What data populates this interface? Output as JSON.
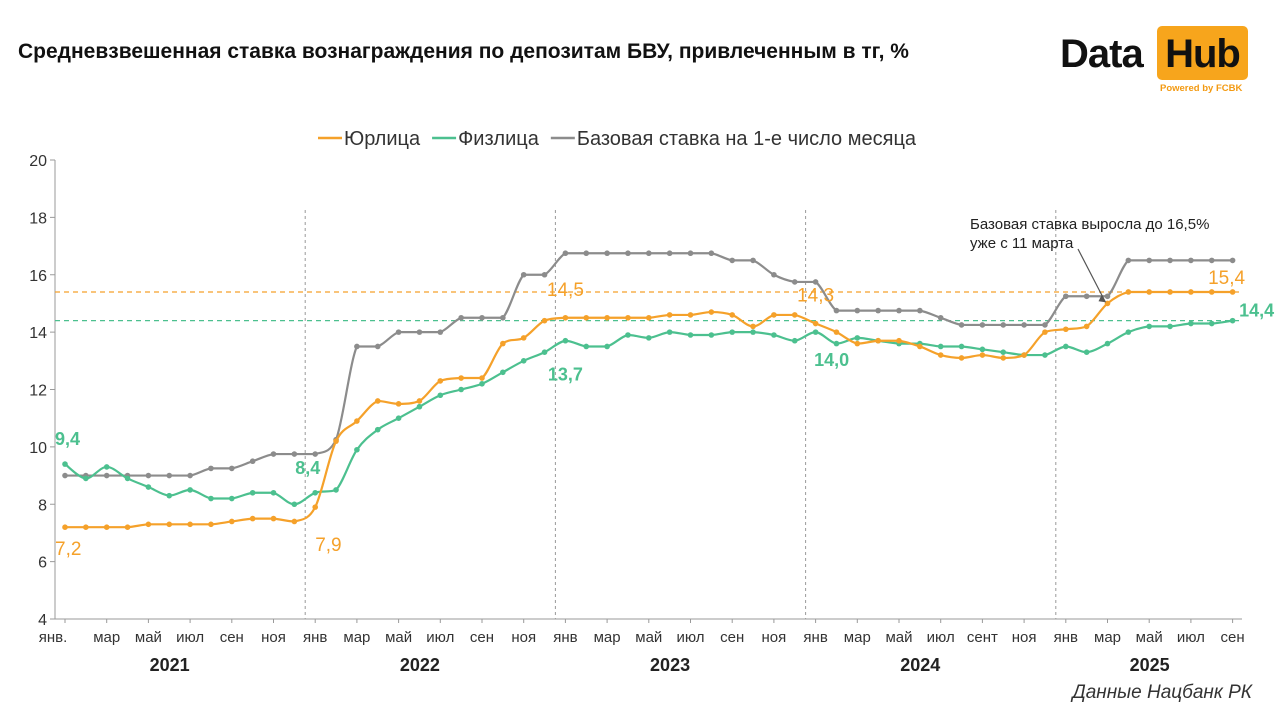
{
  "title": "Средневзвешенная ставка вознаграждения по депозитам БВУ, привлеченным в тг, %",
  "logo": {
    "left": "Data",
    "right": "Hub",
    "powered": "Powered by FCBK"
  },
  "source": "Данные Нацбанк РК",
  "colors": {
    "legal": "#f5a12a",
    "individual": "#4cc08f",
    "base": "#8c8c8c",
    "grid": "#b5b5b5"
  },
  "chart_data": {
    "type": "line",
    "title": "Средневзвешенная ставка вознаграждения по депозитам БВУ, привлеченным в тг, %",
    "y_range": [
      4,
      20
    ],
    "y_ticks": [
      4,
      6,
      8,
      10,
      12,
      14,
      16,
      18,
      20
    ],
    "x_range_months": [
      "2021-01",
      "2025-09"
    ],
    "legend_position": "top-center",
    "x_tick_labels": [
      {
        "month_index": 0,
        "label": "янв."
      },
      {
        "month_index": 2,
        "label": "мар"
      },
      {
        "month_index": 4,
        "label": "май"
      },
      {
        "month_index": 6,
        "label": "июл"
      },
      {
        "month_index": 8,
        "label": "сен"
      },
      {
        "month_index": 10,
        "label": "ноя"
      },
      {
        "month_index": 12,
        "label": "янв"
      },
      {
        "month_index": 14,
        "label": "мар"
      },
      {
        "month_index": 16,
        "label": "май"
      },
      {
        "month_index": 18,
        "label": "июл"
      },
      {
        "month_index": 20,
        "label": "сен"
      },
      {
        "month_index": 22,
        "label": "ноя"
      },
      {
        "month_index": 24,
        "label": "янв"
      },
      {
        "month_index": 26,
        "label": "мар"
      },
      {
        "month_index": 28,
        "label": "май"
      },
      {
        "month_index": 30,
        "label": "июл"
      },
      {
        "month_index": 32,
        "label": "сен"
      },
      {
        "month_index": 34,
        "label": "ноя"
      },
      {
        "month_index": 36,
        "label": "янв"
      },
      {
        "month_index": 38,
        "label": "мар"
      },
      {
        "month_index": 40,
        "label": "май"
      },
      {
        "month_index": 42,
        "label": "июл"
      },
      {
        "month_index": 44,
        "label": "сент"
      },
      {
        "month_index": 46,
        "label": "ноя"
      },
      {
        "month_index": 48,
        "label": "янв"
      },
      {
        "month_index": 50,
        "label": "мар"
      },
      {
        "month_index": 52,
        "label": "май"
      },
      {
        "month_index": 54,
        "label": "июл"
      },
      {
        "month_index": 56,
        "label": "сен"
      }
    ],
    "years": [
      {
        "label": "2021",
        "center_month": 5.5
      },
      {
        "label": "2022",
        "center_month": 17.5
      },
      {
        "label": "2023",
        "center_month": 29.5
      },
      {
        "label": "2024",
        "center_month": 41.5
      },
      {
        "label": "2025",
        "center_month": 52.5
      }
    ],
    "year_dividers": [
      12,
      24,
      36,
      48
    ],
    "series": [
      {
        "name": "Юрлица",
        "color": "#f5a12a",
        "values": [
          7.2,
          7.2,
          7.2,
          7.2,
          7.3,
          7.3,
          7.3,
          7.3,
          7.4,
          7.5,
          7.5,
          7.4,
          7.9,
          10.2,
          10.9,
          11.6,
          11.5,
          11.6,
          12.3,
          12.4,
          12.4,
          13.6,
          13.8,
          14.4,
          14.5,
          14.5,
          14.5,
          14.5,
          14.5,
          14.6,
          14.6,
          14.7,
          14.6,
          14.2,
          14.6,
          14.6,
          14.3,
          14.0,
          13.6,
          13.7,
          13.7,
          13.5,
          13.2,
          13.1,
          13.2,
          13.1,
          13.2,
          14.0,
          14.1,
          14.2,
          15.0,
          15.4,
          15.4,
          15.4,
          15.4,
          15.4,
          15.4
        ]
      },
      {
        "name": "Физлица",
        "color": "#4cc08f",
        "values": [
          9.4,
          8.9,
          9.3,
          8.9,
          8.6,
          8.3,
          8.5,
          8.2,
          8.2,
          8.4,
          8.4,
          8.0,
          8.4,
          8.5,
          9.9,
          10.6,
          11.0,
          11.4,
          11.8,
          12.0,
          12.2,
          12.6,
          13.0,
          13.3,
          13.7,
          13.5,
          13.5,
          13.9,
          13.8,
          14.0,
          13.9,
          13.9,
          14.0,
          14.0,
          13.9,
          13.7,
          14.0,
          13.6,
          13.8,
          13.7,
          13.6,
          13.6,
          13.5,
          13.5,
          13.4,
          13.3,
          13.2,
          13.2,
          13.5,
          13.3,
          13.6,
          14.0,
          14.2,
          14.2,
          14.3,
          14.3,
          14.4
        ]
      },
      {
        "name": "Базовая ставка на 1-е число месяца",
        "color": "#8c8c8c",
        "values": [
          9.0,
          9.0,
          9.0,
          9.0,
          9.0,
          9.0,
          9.0,
          9.25,
          9.25,
          9.5,
          9.75,
          9.75,
          9.75,
          10.25,
          13.5,
          13.5,
          14.0,
          14.0,
          14.0,
          14.5,
          14.5,
          14.5,
          16.0,
          16.0,
          16.75,
          16.75,
          16.75,
          16.75,
          16.75,
          16.75,
          16.75,
          16.75,
          16.5,
          16.5,
          16.0,
          15.75,
          15.75,
          14.75,
          14.75,
          14.75,
          14.75,
          14.75,
          14.5,
          14.25,
          14.25,
          14.25,
          14.25,
          14.25,
          15.25,
          15.25,
          15.25,
          16.5,
          16.5,
          16.5,
          16.5,
          16.5,
          16.5
        ]
      }
    ],
    "reference_lines": [
      {
        "y": 15.4,
        "color": "#f5a12a",
        "series": "Юрлица"
      },
      {
        "y": 14.4,
        "color": "#4cc08f",
        "series": "Физлица"
      }
    ],
    "data_labels": [
      {
        "text": "9,4",
        "series": "Физлица",
        "month_index": 0
      },
      {
        "text": "7,2",
        "series": "Юрлица",
        "month_index": 0
      },
      {
        "text": "8,4",
        "series": "Физлица",
        "month_index": 12
      },
      {
        "text": "7,9",
        "series": "Юрлица",
        "month_index": 12
      },
      {
        "text": "14,5",
        "series": "Юрлица",
        "month_index": 24
      },
      {
        "text": "13,7",
        "series": "Физлица",
        "month_index": 24
      },
      {
        "text": "14,3",
        "series": "Юрлица",
        "month_index": 36
      },
      {
        "text": "14,0",
        "series": "Физлица",
        "month_index": 36
      },
      {
        "text": "15,4",
        "series": "Юрлица",
        "month_index": 56
      },
      {
        "text": "14,4",
        "series": "Физлица",
        "month_index": 56
      }
    ],
    "annotation": {
      "lines": [
        "Базовая ставка выросла до 16,5%",
        "уже с 11 марта"
      ],
      "points_to_month": 50
    }
  }
}
